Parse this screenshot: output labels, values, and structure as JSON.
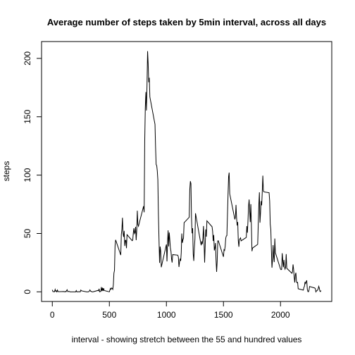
{
  "chart_data": {
    "type": "line",
    "title": "Average number of steps taken by 5min interval,  across all days",
    "xlabel": "interval - showing stretch between the 55 and hundred values",
    "ylabel": "steps",
    "color": "#000000",
    "xlim": [
      -94.2,
      2449.2
    ],
    "xticks": [
      0,
      500,
      1000,
      1500,
      2000
    ],
    "ylim": [
      -8.25,
      214.42
    ],
    "yticks": [
      0,
      50,
      100,
      150,
      200
    ],
    "x": [
      0,
      5,
      10,
      15,
      20,
      25,
      30,
      35,
      40,
      45,
      50,
      55,
      100,
      105,
      110,
      115,
      120,
      125,
      130,
      135,
      140,
      145,
      150,
      155,
      200,
      205,
      210,
      215,
      220,
      225,
      230,
      235,
      240,
      245,
      250,
      255,
      300,
      305,
      310,
      315,
      320,
      325,
      330,
      335,
      340,
      345,
      350,
      355,
      400,
      405,
      410,
      415,
      420,
      425,
      430,
      435,
      440,
      445,
      450,
      455,
      500,
      505,
      510,
      515,
      520,
      525,
      530,
      535,
      540,
      545,
      550,
      555,
      600,
      605,
      610,
      615,
      620,
      625,
      630,
      635,
      640,
      645,
      650,
      655,
      700,
      705,
      710,
      715,
      720,
      725,
      730,
      735,
      740,
      745,
      750,
      755,
      800,
      805,
      810,
      815,
      820,
      825,
      830,
      835,
      840,
      845,
      850,
      855,
      900,
      905,
      910,
      915,
      920,
      925,
      930,
      935,
      940,
      945,
      950,
      955,
      1000,
      1005,
      1010,
      1015,
      1020,
      1025,
      1030,
      1035,
      1040,
      1045,
      1050,
      1055,
      1100,
      1105,
      1110,
      1115,
      1120,
      1125,
      1130,
      1135,
      1140,
      1145,
      1150,
      1155,
      1200,
      1205,
      1210,
      1215,
      1220,
      1225,
      1230,
      1235,
      1240,
      1245,
      1250,
      1255,
      1300,
      1305,
      1310,
      1315,
      1320,
      1325,
      1330,
      1335,
      1340,
      1345,
      1350,
      1355,
      1400,
      1405,
      1410,
      1415,
      1420,
      1425,
      1430,
      1435,
      1440,
      1445,
      1450,
      1455,
      1500,
      1505,
      1510,
      1515,
      1520,
      1525,
      1530,
      1535,
      1540,
      1545,
      1550,
      1555,
      1600,
      1605,
      1610,
      1615,
      1620,
      1625,
      1630,
      1635,
      1640,
      1645,
      1650,
      1655,
      1700,
      1705,
      1710,
      1715,
      1720,
      1725,
      1730,
      1735,
      1740,
      1745,
      1750,
      1755,
      1800,
      1805,
      1810,
      1815,
      1820,
      1825,
      1830,
      1835,
      1840,
      1845,
      1850,
      1855,
      1900,
      1905,
      1910,
      1915,
      1920,
      1925,
      1930,
      1935,
      1940,
      1945,
      1950,
      1955,
      2000,
      2005,
      2010,
      2015,
      2020,
      2025,
      2030,
      2035,
      2040,
      2045,
      2050,
      2055,
      2100,
      2105,
      2110,
      2115,
      2120,
      2125,
      2130,
      2135,
      2140,
      2145,
      2150,
      2155,
      2200,
      2205,
      2210,
      2215,
      2220,
      2225,
      2230,
      2235,
      2240,
      2245,
      2250,
      2255,
      2300,
      2305,
      2310,
      2315,
      2320,
      2325,
      2330,
      2335,
      2340,
      2345,
      2350,
      2355
    ],
    "values": [
      1.7,
      0.3,
      0.1,
      0.2,
      0.1,
      2.1,
      0.5,
      0.9,
      0,
      1.5,
      0.3,
      0.1,
      0.3,
      0,
      0.2,
      0.3,
      0,
      1.1,
      1.8,
      0.2,
      0.2,
      0.4,
      0.3,
      0,
      0,
      0,
      1.1,
      0,
      0,
      0.1,
      0,
      0.2,
      0,
      0,
      1.5,
      0.9,
      0,
      0,
      0,
      0,
      0.2,
      0.6,
      1.6,
      0.6,
      0.5,
      0.1,
      0,
      0,
      1.2,
      0.9,
      2.6,
      0,
      0.3,
      0.4,
      4.1,
      0.7,
      3.5,
      0.8,
      3.1,
      1.1,
      0,
      1.6,
      3.0,
      2.2,
      3.3,
      3.0,
      2.1,
      6.1,
      16.0,
      18.3,
      39.5,
      44.5,
      31.5,
      49.3,
      53.8,
      63.5,
      50.0,
      47.1,
      52.2,
      39.3,
      44.0,
      44.2,
      37.4,
      49.0,
      43.8,
      44.4,
      50.5,
      54.5,
      49.9,
      51.0,
      55.7,
      44.3,
      52.3,
      69.5,
      57.8,
      56.2,
      73.4,
      68.2,
      129.4,
      157.5,
      171.2,
      155.4,
      177.3,
      206.2,
      195.9,
      179.6,
      183.4,
      167.0,
      143.5,
      124.0,
      109.1,
      108.1,
      103.7,
      95.97,
      66.2,
      45.2,
      24.8,
      38.8,
      35.0,
      21.1,
      40.6,
      26.1,
      42.4,
      52.7,
      38.9,
      50.8,
      44.3,
      37.4,
      34.7,
      28.3,
      25.1,
      31.9,
      31.4,
      29.7,
      21.3,
      25.5,
      28.4,
      26.5,
      33.4,
      49.98,
      42.0,
      44.6,
      46.0,
      59.2,
      63.9,
      87.7,
      94.8,
      92.8,
      63.4,
      50.2,
      54.5,
      32.4,
      26.5,
      37.7,
      45.1,
      67.3,
      42.3,
      39.9,
      43.3,
      40.98,
      46.2,
      56.4,
      42.8,
      25.1,
      39.97,
      53.5,
      47.3,
      60.8,
      55.8,
      51.96,
      43.6,
      48.7,
      35.5,
      37.5,
      41.8,
      27.5,
      17.1,
      26.1,
      43.6,
      43.8,
      30.0,
      36.1,
      35.5,
      38.8,
      45.96,
      47.8,
      48.1,
      65.3,
      82.9,
      98.7,
      102.1,
      83.96,
      62.1,
      64.1,
      74.5,
      63.2,
      56.9,
      59.8,
      43.9,
      38.6,
      44.7,
      45.5,
      46.2,
      43.7,
      46.6,
      56.3,
      50.7,
      61.2,
      73.4,
      79.1,
      68.9,
      59.7,
      75.1,
      56.5,
      34.8,
      37.5,
      40.7,
      58.0,
      74.7,
      85.3,
      59.3,
      67.8,
      77.7,
      74.2,
      85.3,
      99.5,
      86.6,
      85.6,
      84.9,
      77.8,
      58.0,
      53.4,
      36.3,
      20.7,
      27.4,
      40.0,
      30.2,
      25.5,
      45.7,
      33.5,
      19.6,
      19.0,
      19.3,
      33.1,
      26.8,
      21.2,
      27.3,
      21.3,
      19.5,
      21.3,
      32.3,
      20.2,
      15.9,
      17.2,
      23.5,
      19.2,
      12.5,
      8.0,
      14.7,
      16.3,
      8.7,
      7.8,
      8.1,
      2.6,
      1.5,
      3.7,
      4.8,
      8.5,
      7.1,
      8.7,
      9.8,
      2.2,
      0.3,
      0.1,
      1.6,
      4.6,
      3.3,
      2.8,
      0,
      0.8,
      1.0,
      1.6,
      2.6,
      4.7,
      3.3,
      0.6,
      0.2,
      1.1
    ]
  }
}
